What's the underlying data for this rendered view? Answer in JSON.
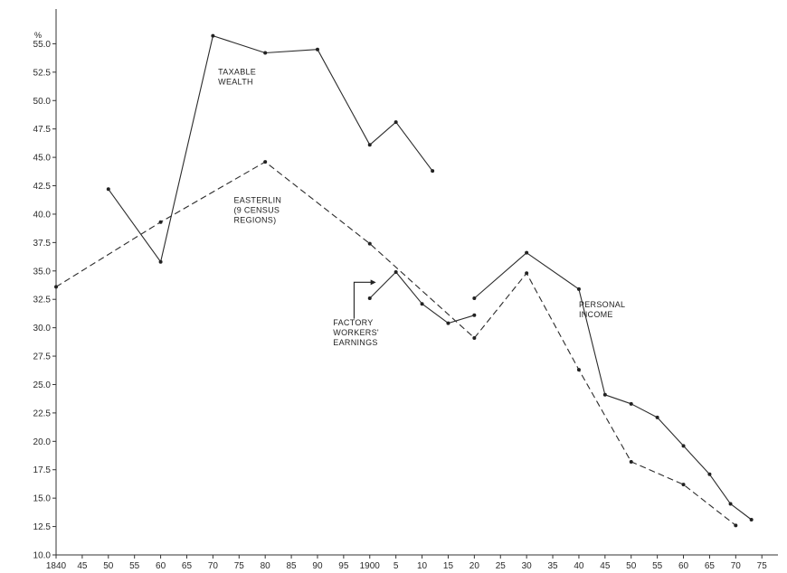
{
  "chart_data": {
    "type": "line",
    "ylabel": "%",
    "ylim": [
      10.0,
      57.5
    ],
    "xlim": [
      1840,
      1976
    ],
    "y_ticks": [
      "10.0",
      "12.5",
      "15.0",
      "17.5",
      "20.0",
      "22.5",
      "25.0",
      "27.5",
      "30.0",
      "32.5",
      "35.0",
      "37.5",
      "40.0",
      "42.5",
      "45.0",
      "47.5",
      "50.0",
      "52.5",
      "55.0"
    ],
    "x_ticks": [
      {
        "value": 1840,
        "label": "1840"
      },
      {
        "value": 1845,
        "label": "45"
      },
      {
        "value": 1850,
        "label": "50"
      },
      {
        "value": 1855,
        "label": "55"
      },
      {
        "value": 1860,
        "label": "60"
      },
      {
        "value": 1865,
        "label": "65"
      },
      {
        "value": 1870,
        "label": "70"
      },
      {
        "value": 1875,
        "label": "75"
      },
      {
        "value": 1880,
        "label": "80"
      },
      {
        "value": 1885,
        "label": "85"
      },
      {
        "value": 1890,
        "label": "90"
      },
      {
        "value": 1895,
        "label": "95"
      },
      {
        "value": 1900,
        "label": "1900"
      },
      {
        "value": 1905,
        "label": "5"
      },
      {
        "value": 1910,
        "label": "10"
      },
      {
        "value": 1915,
        "label": "15"
      },
      {
        "value": 1920,
        "label": "20"
      },
      {
        "value": 1925,
        "label": "25"
      },
      {
        "value": 1930,
        "label": "30"
      },
      {
        "value": 1935,
        "label": "35"
      },
      {
        "value": 1940,
        "label": "40"
      },
      {
        "value": 1945,
        "label": "45"
      },
      {
        "value": 1950,
        "label": "50"
      },
      {
        "value": 1955,
        "label": "55"
      },
      {
        "value": 1960,
        "label": "60"
      },
      {
        "value": 1965,
        "label": "65"
      },
      {
        "value": 1970,
        "label": "70"
      },
      {
        "value": 1975,
        "label": "75"
      }
    ],
    "series": [
      {
        "name": "TAXABLE WEALTH",
        "style": "solid",
        "x": [
          1850,
          1860,
          1870,
          1880,
          1890,
          1900,
          1905,
          1912
        ],
        "y": [
          42.2,
          35.8,
          55.7,
          54.2,
          54.5,
          46.1,
          48.1,
          43.8
        ]
      },
      {
        "name": "EASTERLIN (9 CENSUS REGIONS)",
        "style": "dashed",
        "x": [
          1840,
          1860,
          1880,
          1900,
          1920,
          1930,
          1940,
          1950,
          1960,
          1970
        ],
        "y": [
          33.6,
          39.3,
          44.6,
          37.4,
          29.1,
          34.8,
          26.3,
          18.2,
          16.2,
          12.6
        ]
      },
      {
        "name": "FACTORY WORKERS' EARNINGS",
        "style": "solid",
        "x": [
          1900,
          1905,
          1910,
          1915,
          1920
        ],
        "y": [
          32.6,
          34.9,
          32.1,
          30.4,
          31.1
        ]
      },
      {
        "name": "PERSONAL INCOME",
        "style": "solid",
        "x": [
          1920,
          1930,
          1940,
          1945,
          1950,
          1955,
          1960,
          1965,
          1969,
          1973
        ],
        "y": [
          32.6,
          36.6,
          33.4,
          24.1,
          23.3,
          22.1,
          19.6,
          17.1,
          14.5,
          13.1
        ]
      }
    ],
    "annotations": [
      {
        "lines": [
          "TAXABLE",
          "WEALTH"
        ],
        "x": 1871,
        "y": 52.3
      },
      {
        "lines": [
          "EASTERLIN",
          "(9 CENSUS",
          "REGIONS)"
        ],
        "x": 1874,
        "y": 41.0
      },
      {
        "lines": [
          "FACTORY",
          "WORKERS'",
          "EARNINGS"
        ],
        "x": 1893,
        "y": 30.2
      },
      {
        "lines": [
          "PERSONAL",
          "INCOME"
        ],
        "x": 1940,
        "y": 31.8
      }
    ]
  }
}
